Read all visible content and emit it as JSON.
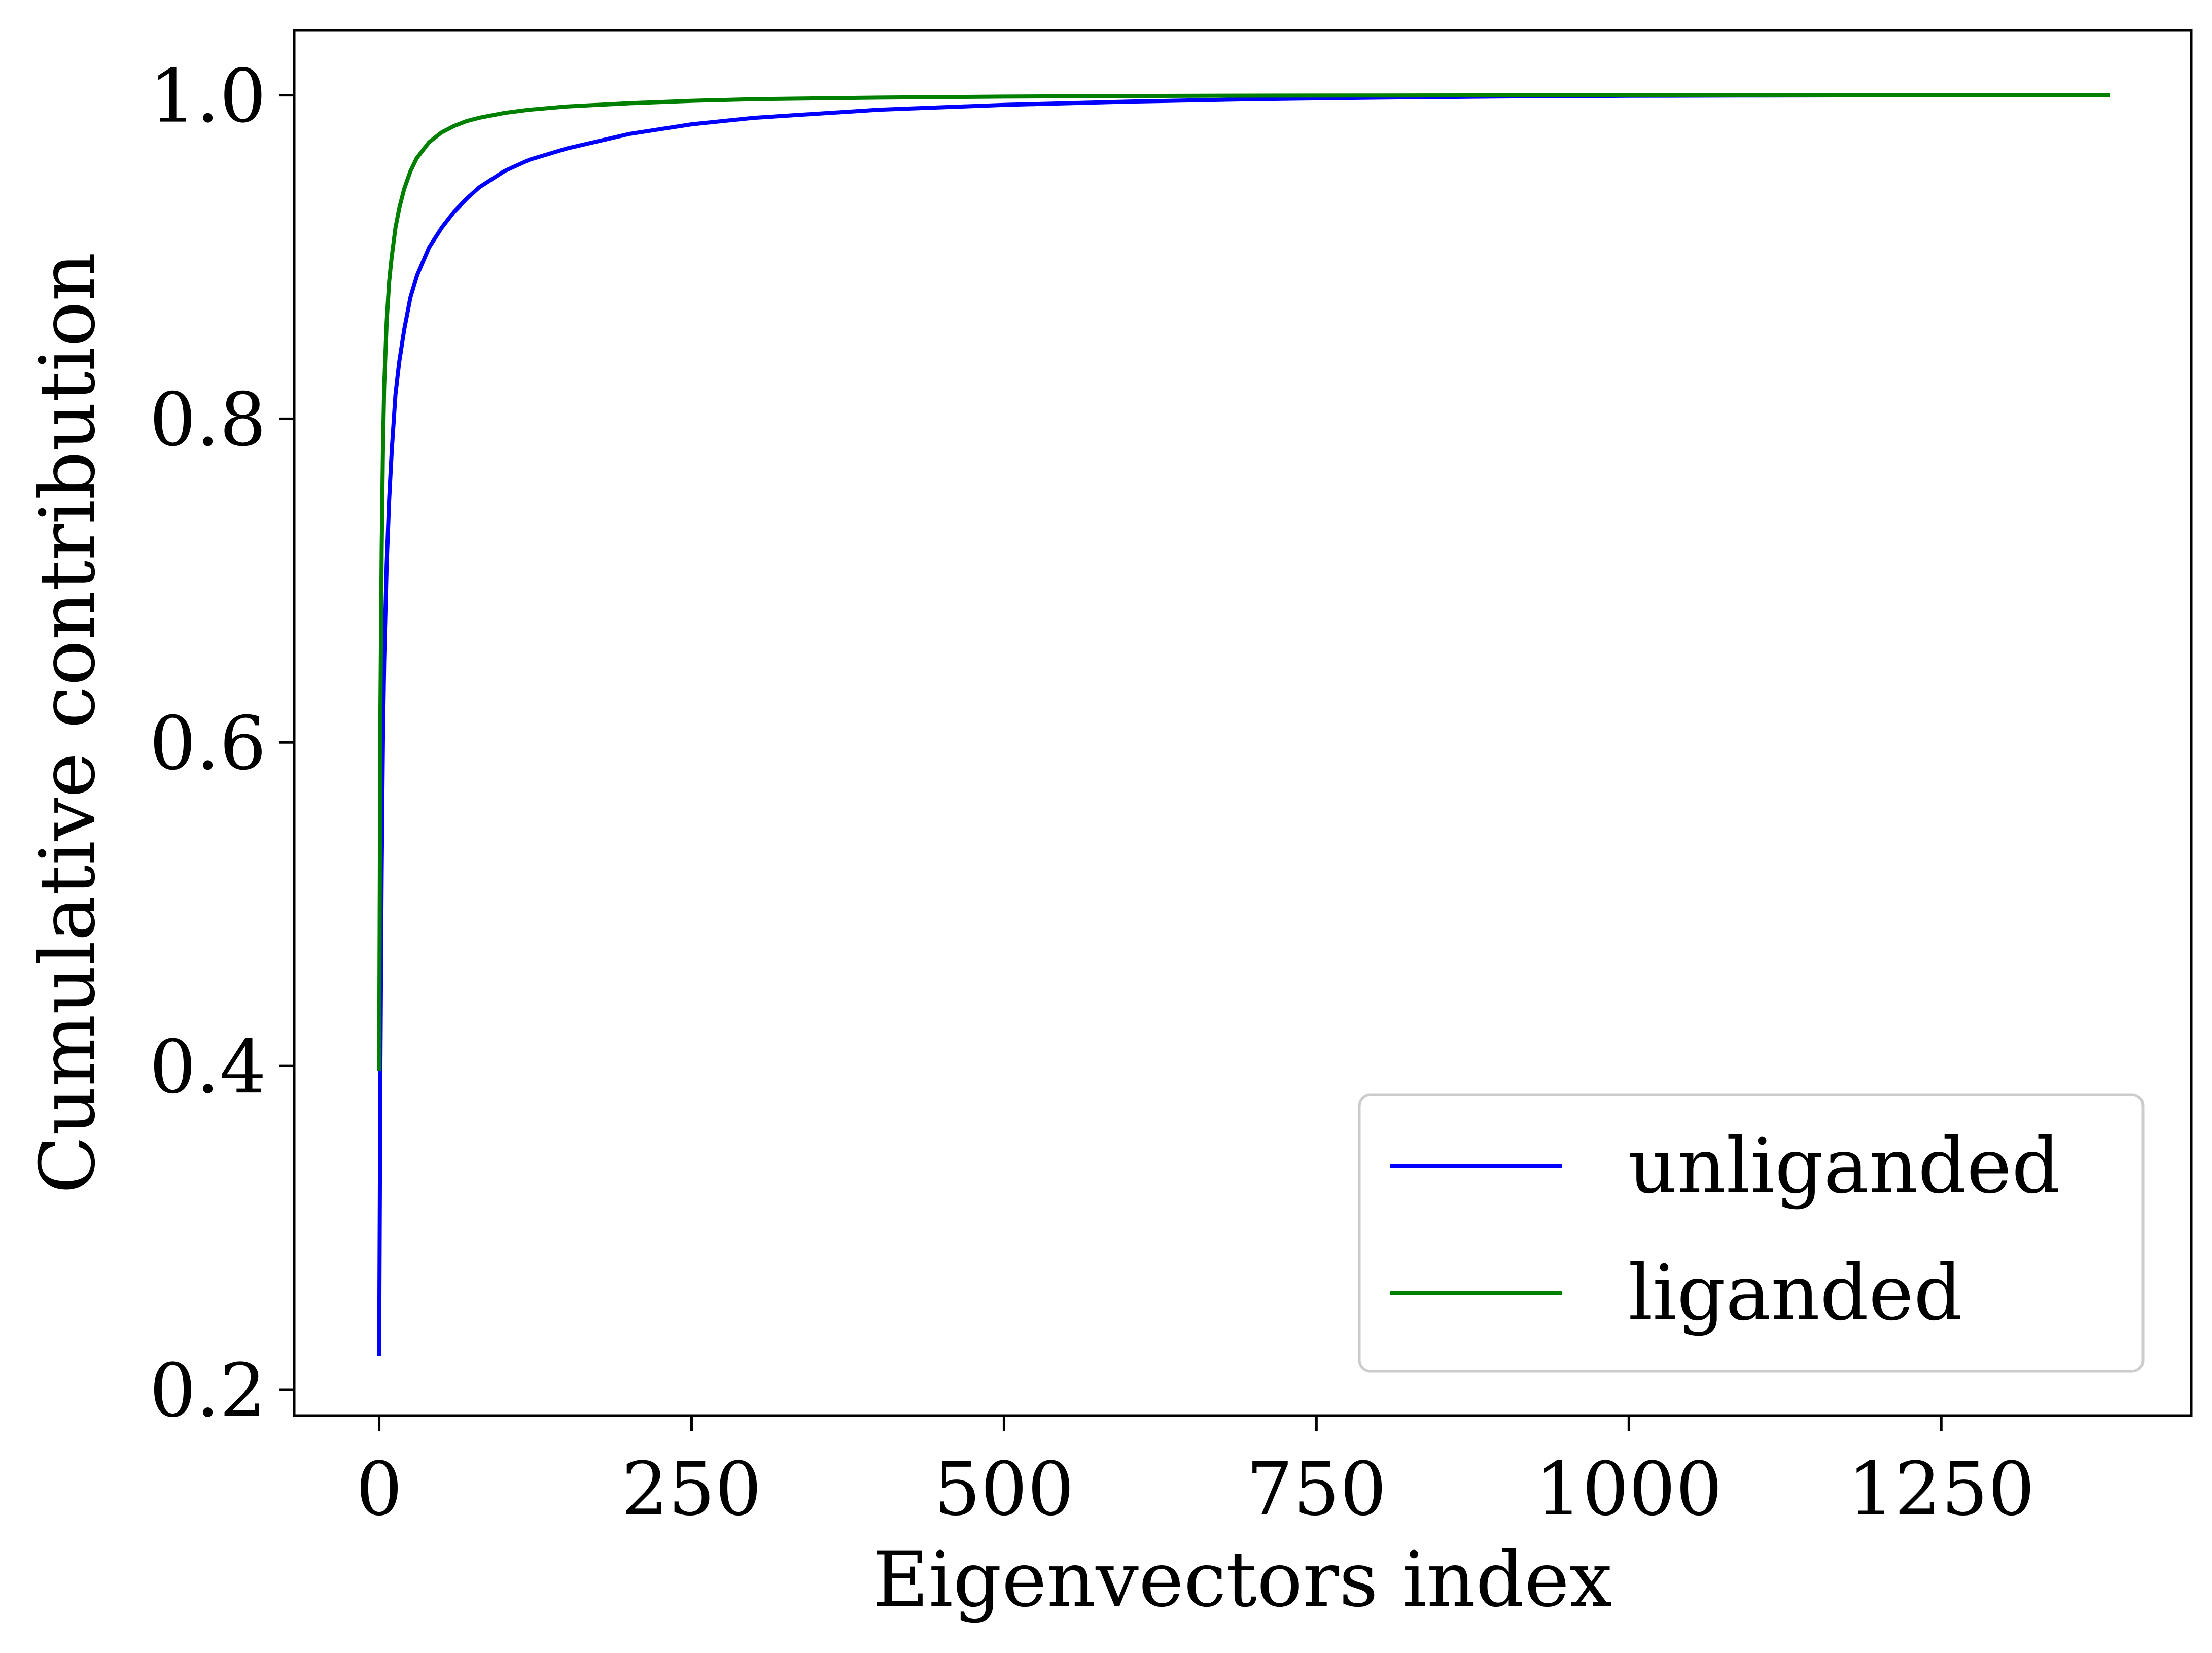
{
  "chart_data": {
    "type": "line",
    "title": "",
    "xlabel": "Eigenvectors index",
    "ylabel": "Cumulative contribution",
    "xlim": [
      -68,
      1450
    ],
    "ylim": [
      0.184,
      1.04
    ],
    "xticks": [
      0,
      250,
      500,
      750,
      1000,
      1250
    ],
    "xtick_labels": [
      "0",
      "250",
      "500",
      "750",
      "1000",
      "1250"
    ],
    "yticks": [
      0.2,
      0.4,
      0.6,
      0.8,
      1.0
    ],
    "ytick_labels": [
      "0.2",
      "0.4",
      "0.6",
      "0.8",
      "1.0"
    ],
    "grid": false,
    "legend_position": "lower-right",
    "series": [
      {
        "name": "unliganded",
        "color": "#0000ff",
        "x": [
          0,
          1,
          2,
          3,
          4,
          6,
          8,
          10,
          13,
          16,
          20,
          25,
          30,
          40,
          50,
          60,
          70,
          80,
          100,
          120,
          150,
          200,
          250,
          300,
          400,
          500,
          600,
          700,
          800,
          900,
          1000,
          1100,
          1200,
          1300,
          1385
        ],
        "y": [
          0.221,
          0.4,
          0.52,
          0.6,
          0.65,
          0.71,
          0.75,
          0.78,
          0.815,
          0.835,
          0.855,
          0.875,
          0.888,
          0.906,
          0.918,
          0.928,
          0.936,
          0.943,
          0.953,
          0.96,
          0.967,
          0.976,
          0.982,
          0.986,
          0.991,
          0.994,
          0.996,
          0.9975,
          0.9985,
          0.9992,
          0.9996,
          0.9998,
          0.9999,
          1.0,
          1.0
        ]
      },
      {
        "name": "liganded",
        "color": "#008000",
        "x": [
          0,
          1,
          2,
          3,
          4,
          6,
          8,
          10,
          13,
          16,
          20,
          25,
          30,
          40,
          50,
          60,
          70,
          80,
          100,
          120,
          150,
          200,
          250,
          300,
          400,
          500,
          600,
          700,
          800,
          900,
          1000,
          1100,
          1200,
          1300,
          1385
        ],
        "y": [
          0.397,
          0.62,
          0.72,
          0.78,
          0.82,
          0.86,
          0.885,
          0.9,
          0.918,
          0.93,
          0.942,
          0.953,
          0.961,
          0.971,
          0.977,
          0.981,
          0.984,
          0.986,
          0.989,
          0.991,
          0.993,
          0.995,
          0.9965,
          0.9975,
          0.9985,
          0.9991,
          0.9995,
          0.9997,
          0.9998,
          0.9999,
          1.0,
          1.0,
          1.0,
          1.0,
          1.0
        ]
      }
    ]
  }
}
